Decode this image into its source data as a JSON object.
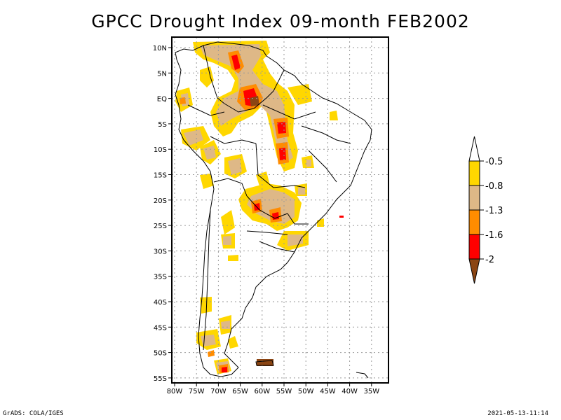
{
  "title": "GPCC Drought Index 09-month FEB2002",
  "map": {
    "region": "South America",
    "projection": "latlon",
    "lon_range": [
      "80W",
      "35W"
    ],
    "lat_range": [
      "55S",
      "10N"
    ],
    "lat_ticks": [
      "10N",
      "5N",
      "EQ",
      "5S",
      "10S",
      "15S",
      "20S",
      "25S",
      "30S",
      "35S",
      "40S",
      "45S",
      "50S",
      "55S"
    ],
    "lon_ticks": [
      "80W",
      "75W",
      "70W",
      "65W",
      "60W",
      "55W",
      "50W",
      "45W",
      "40W",
      "35W"
    ],
    "grid": "dotted"
  },
  "colorbar": {
    "levels": [
      "-0.5",
      "-0.8",
      "-1.3",
      "-1.6",
      "-2"
    ],
    "colors": [
      "#ffffff",
      "#ffd700",
      "#deb887",
      "#ff8c00",
      "#ff0000",
      "#8b4513"
    ],
    "bins": [
      {
        "range": "> -0.5",
        "color": "#ffffff"
      },
      {
        "range": "-0.8 to -0.5",
        "color": "#ffd700"
      },
      {
        "range": "-1.3 to -0.8",
        "color": "#deb887"
      },
      {
        "range": "-1.6 to -1.3",
        "color": "#ff8c00"
      },
      {
        "range": "-2 to -1.6",
        "color": "#ff0000"
      },
      {
        "range": "< -2",
        "color": "#8b4513"
      }
    ]
  },
  "footer": {
    "credit": "GrADS: COLA/IGES",
    "timestamp": "2021-05-13-11:14"
  }
}
